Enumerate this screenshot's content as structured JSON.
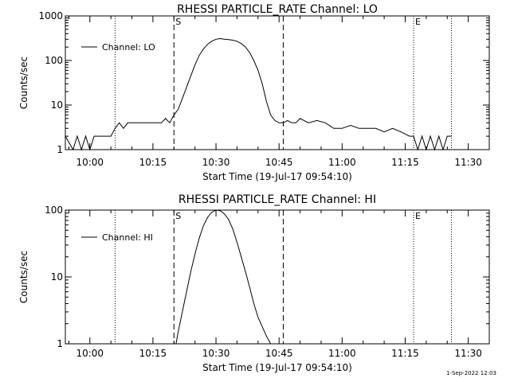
{
  "footer": {
    "timestamp": "1-Sep-2022 12:03"
  },
  "chart_data": [
    {
      "type": "line",
      "title": "RHESSI PARTICLE_RATE Channel: LO",
      "xlabel": "Start Time (19-Jul-17 09:54:10)",
      "ylabel": "Counts/sec",
      "yscale": "log",
      "xlim": [
        "09:54:10",
        "11:35:00"
      ],
      "ylim": [
        1,
        1000
      ],
      "x_tick_labels": [
        "10:00",
        "10:15",
        "10:30",
        "10:45",
        "11:00",
        "11:15",
        "11:30"
      ],
      "y_tick_labels": [
        "1",
        "10",
        "100",
        "1000"
      ],
      "grid": false,
      "legend": {
        "label": "Channel: LO",
        "position": "top-left"
      },
      "markers": [
        {
          "label": "",
          "time": "10:06:00",
          "style": "dotted"
        },
        {
          "label": "S",
          "time": "10:20:00",
          "style": "dashed"
        },
        {
          "label": "",
          "time": "10:46:00",
          "style": "dashed"
        },
        {
          "label": "E",
          "time": "11:17:00",
          "style": "dotted"
        },
        {
          "label": "",
          "time": "11:26:00",
          "style": "dotted"
        }
      ],
      "series": [
        {
          "x": [
            "09:54:10",
            "09:56:00",
            "09:57:00",
            "09:58:00",
            "09:59:00",
            "10:00:00",
            "10:01:00",
            "10:02:00",
            "10:03:00",
            "10:04:00",
            "10:05:00",
            "10:06:00",
            "10:07:00",
            "10:08:00",
            "10:09:00",
            "10:10:00",
            "10:11:00",
            "10:12:00",
            "10:13:00",
            "10:14:00",
            "10:15:00",
            "10:16:00",
            "10:17:00",
            "10:18:00",
            "10:19:00",
            "10:20:00",
            "10:21:00",
            "10:22:00",
            "10:23:00",
            "10:24:00",
            "10:25:00",
            "10:26:00",
            "10:27:00",
            "10:28:00",
            "10:29:00",
            "10:30:00",
            "10:31:00",
            "10:32:00",
            "10:33:00",
            "10:34:00",
            "10:35:00",
            "10:36:00",
            "10:37:00",
            "10:38:00",
            "10:39:00",
            "10:40:00",
            "10:41:00",
            "10:42:00",
            "10:43:00",
            "10:44:00",
            "10:45:00",
            "10:46:00",
            "10:47:00",
            "10:48:00",
            "10:49:00",
            "10:50:00",
            "10:52:00",
            "10:54:00",
            "10:56:00",
            "10:58:00",
            "11:00:00",
            "11:02:00",
            "11:04:00",
            "11:06:00",
            "11:08:00",
            "11:10:00",
            "11:12:00",
            "11:14:00",
            "11:16:00",
            "11:17:00",
            "11:18:00",
            "11:19:00",
            "11:20:00",
            "11:21:00",
            "11:22:00",
            "11:23:00",
            "11:24:00",
            "11:25:00",
            "11:26:00"
          ],
          "y": [
            2,
            1,
            2,
            1,
            2,
            1,
            2,
            2,
            2,
            2,
            2,
            3,
            4,
            3,
            4,
            4,
            4,
            4,
            4,
            4,
            4,
            4,
            4,
            5,
            4,
            6,
            8,
            14,
            25,
            45,
            80,
            130,
            180,
            230,
            270,
            300,
            310,
            300,
            295,
            285,
            270,
            240,
            200,
            150,
            100,
            60,
            30,
            12,
            6,
            4.5,
            4,
            4,
            4.5,
            4,
            4,
            5,
            4,
            4.5,
            4,
            3,
            3,
            3.5,
            3,
            3,
            3,
            2.5,
            3,
            2.5,
            2,
            2,
            1,
            2,
            1,
            2,
            1,
            2,
            1,
            2,
            2
          ]
        }
      ]
    },
    {
      "type": "line",
      "title": "RHESSI PARTICLE_RATE Channel: HI",
      "xlabel": "Start Time (19-Jul-17 09:54:10)",
      "ylabel": "Counts/sec",
      "yscale": "log",
      "xlim": [
        "09:54:10",
        "11:35:00"
      ],
      "ylim": [
        1,
        100
      ],
      "x_tick_labels": [
        "10:00",
        "10:15",
        "10:30",
        "10:45",
        "11:00",
        "11:15",
        "11:30"
      ],
      "y_tick_labels": [
        "1",
        "10",
        "100"
      ],
      "grid": false,
      "legend": {
        "label": "Channel: HI",
        "position": "top-left"
      },
      "markers": [
        {
          "label": "",
          "time": "10:06:00",
          "style": "dotted"
        },
        {
          "label": "S",
          "time": "10:20:00",
          "style": "dashed"
        },
        {
          "label": "",
          "time": "10:46:00",
          "style": "dashed"
        },
        {
          "label": "E",
          "time": "11:17:00",
          "style": "dotted"
        },
        {
          "label": "",
          "time": "11:26:00",
          "style": "dotted"
        }
      ],
      "series": [
        {
          "x": [
            "10:20:30",
            "10:21:00",
            "10:22:00",
            "10:23:00",
            "10:24:00",
            "10:25:00",
            "10:26:00",
            "10:27:00",
            "10:28:00",
            "10:29:00",
            "10:30:00",
            "10:31:00",
            "10:32:00",
            "10:33:00",
            "10:34:00",
            "10:35:00",
            "10:36:00",
            "10:37:00",
            "10:38:00",
            "10:39:00",
            "10:40:00",
            "10:41:00",
            "10:42:00",
            "10:43:00"
          ],
          "y": [
            1,
            1.5,
            3,
            6,
            12,
            22,
            38,
            58,
            78,
            93,
            100,
            98,
            88,
            72,
            52,
            33,
            20,
            12,
            7,
            4,
            2.5,
            1.8,
            1.3,
            1
          ]
        }
      ]
    }
  ]
}
